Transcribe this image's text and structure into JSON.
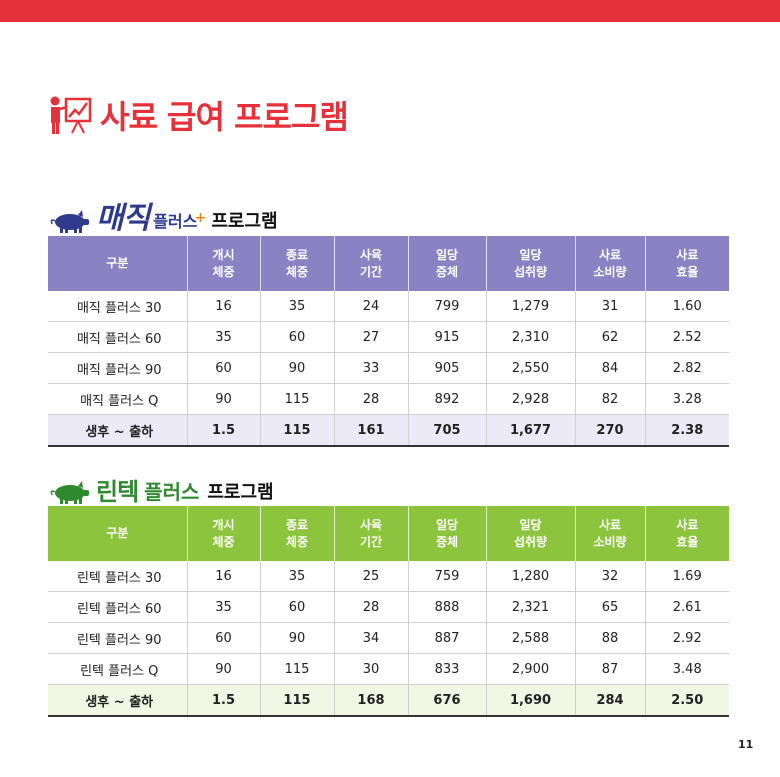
{
  "page_title": "사료 급여 프로그램",
  "page_number": "11",
  "colors": {
    "accent_red": "#e5323a",
    "header_purple": "#8a82c2",
    "header_green": "#8dc43e"
  },
  "magic": {
    "brand_main": "매직",
    "brand_sub": "플러스",
    "plus_mark": "+",
    "program_word": "프로그램",
    "headers": [
      {
        "l1": "구분",
        "l2": ""
      },
      {
        "l1": "개시",
        "l2": "체중"
      },
      {
        "l1": "종료",
        "l2": "체중"
      },
      {
        "l1": "사육",
        "l2": "기간"
      },
      {
        "l1": "일당",
        "l2": "증체"
      },
      {
        "l1": "일당",
        "l2": "섭취량"
      },
      {
        "l1": "사료",
        "l2": "소비량"
      },
      {
        "l1": "사료",
        "l2": "효율"
      }
    ],
    "rows": [
      [
        "매직 플러스 30",
        "16",
        "35",
        "24",
        "799",
        "1,279",
        "31",
        "1.60"
      ],
      [
        "매직 플러스 60",
        "35",
        "60",
        "27",
        "915",
        "2,310",
        "62",
        "2.52"
      ],
      [
        "매직 플러스 90",
        "60",
        "90",
        "33",
        "905",
        "2,550",
        "84",
        "2.82"
      ],
      [
        "매직 플러스 Q",
        "90",
        "115",
        "28",
        "892",
        "2,928",
        "82",
        "3.28"
      ],
      [
        "생후 ~ 출하",
        "1.5",
        "115",
        "161",
        "705",
        "1,677",
        "270",
        "2.38"
      ]
    ]
  },
  "lintech": {
    "brand_main": "린텍",
    "brand_sub": "플러스",
    "program_word": "프로그램",
    "headers": [
      {
        "l1": "구분",
        "l2": ""
      },
      {
        "l1": "개시",
        "l2": "체중"
      },
      {
        "l1": "종료",
        "l2": "체중"
      },
      {
        "l1": "사육",
        "l2": "기간"
      },
      {
        "l1": "일당",
        "l2": "증체"
      },
      {
        "l1": "일당",
        "l2": "섭취량"
      },
      {
        "l1": "사료",
        "l2": "소비량"
      },
      {
        "l1": "사료",
        "l2": "효율"
      }
    ],
    "rows": [
      [
        "린텍 플러스 30",
        "16",
        "35",
        "25",
        "759",
        "1,280",
        "32",
        "1.69"
      ],
      [
        "린텍 플러스 60",
        "35",
        "60",
        "28",
        "888",
        "2,321",
        "65",
        "2.61"
      ],
      [
        "린텍 플러스 90",
        "60",
        "90",
        "34",
        "887",
        "2,588",
        "88",
        "2.92"
      ],
      [
        "린텍 플러스 Q",
        "90",
        "115",
        "30",
        "833",
        "2,900",
        "87",
        "3.48"
      ],
      [
        "생후 ~ 출하",
        "1.5",
        "115",
        "168",
        "676",
        "1,690",
        "284",
        "2.50"
      ]
    ]
  }
}
